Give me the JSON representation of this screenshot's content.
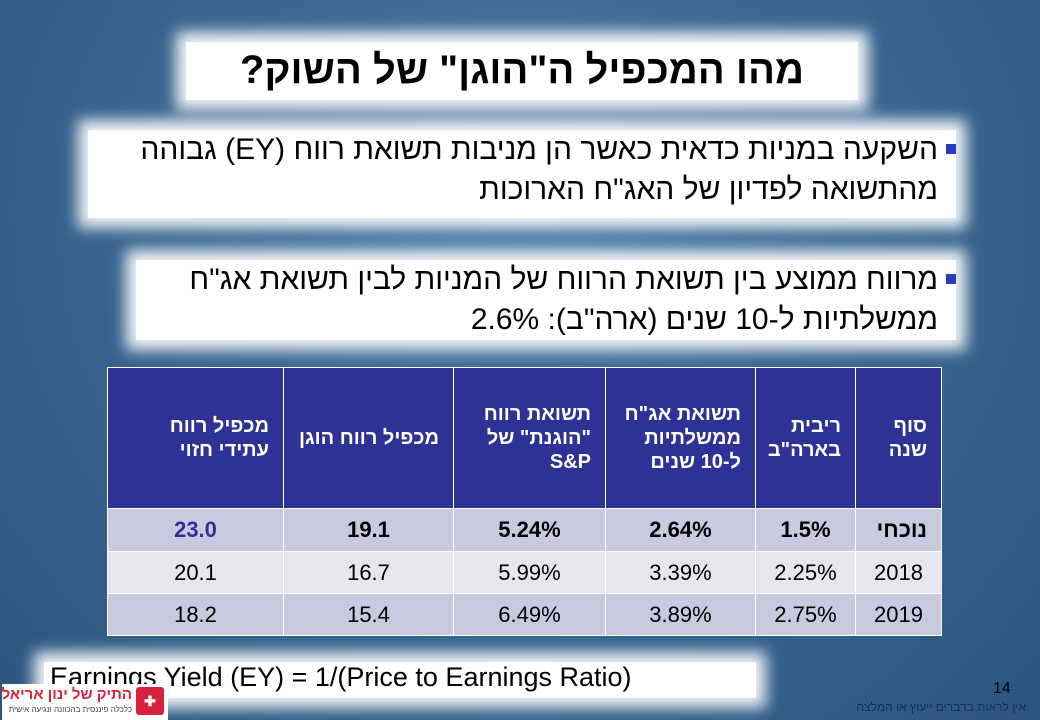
{
  "title": "מהו המכפיל ה\"הוגן\" של השוק?",
  "bullets": [
    "השקעה במניות כדאית כאשר הן מניבות תשואת רווח (EY) גבוהה מהתשואה לפדיון של האג\"ח הארוכות",
    "מרווח ממוצע בין תשואת הרווח של המניות לבין תשואת אג\"ח ממשלתיות ל-10 שנים (ארה\"ב): 2.6%"
  ],
  "table": {
    "headers": [
      "סוף שנה",
      "ריבית בארה\"ב",
      "תשואת אג\"ח ממשלתיות ל-10 שנים",
      "תשואת רווח \"הוגנת\" של S&P",
      "מכפיל רווח הוגן",
      "מכפיל רווח עתידי חזוי"
    ],
    "rows": [
      [
        "נוכחי",
        "1.5%",
        "2.64%",
        "5.24%",
        "19.1",
        "23.0"
      ],
      [
        "2018",
        "2.25%",
        "3.39%",
        "5.99%",
        "16.7",
        "20.1"
      ],
      [
        "2019",
        "2.75%",
        "3.89%",
        "6.49%",
        "15.4",
        "18.2"
      ]
    ]
  },
  "formula": "Earnings Yield (EY) = 1/(Price to Earnings Ratio)",
  "page_number": "14",
  "disclaimer": "אין לראות בדברים ייעוץ או המלצה",
  "logo": {
    "name": "התיק של ינון אריאלי",
    "tagline": "כלכלה פיננסית בהכוונה ונגיעה אישית",
    "icon": "briefcase-icon"
  },
  "colors": {
    "header_bg": "#2e3195",
    "row_dark": "#c9c9e0",
    "row_light": "#e6e6f0",
    "accent_value": "#2e3195",
    "bullet": "#2c3db8"
  }
}
